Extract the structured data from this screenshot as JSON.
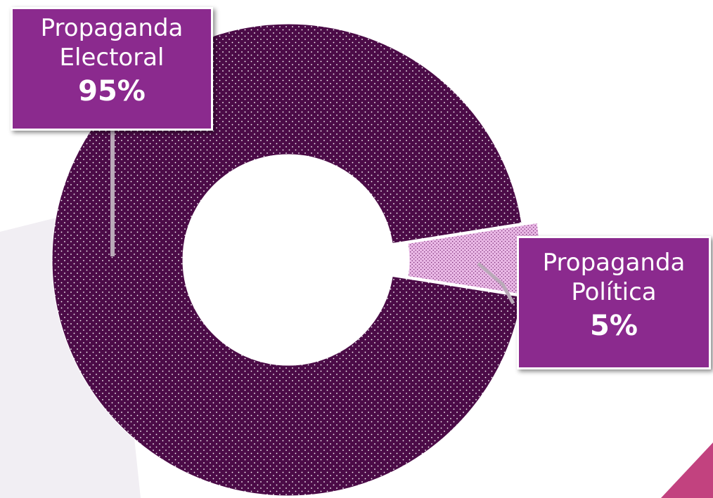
{
  "chart_data": {
    "type": "donut",
    "categories": [
      "Propaganda Electoral",
      "Propaganda Política"
    ],
    "values": [
      95,
      5
    ],
    "value_labels": [
      "95%",
      "5%"
    ],
    "colors": [
      "#4b0b47",
      "#eab9e6"
    ]
  }
}
